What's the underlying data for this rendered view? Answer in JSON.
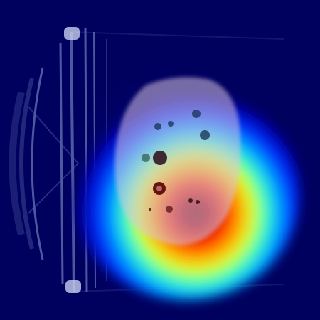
{
  "image": {
    "kind": "ct-slice-with-attention-heatmap",
    "colormap": "jet",
    "background_color": "#00005f",
    "heat_peak_color": "#7a0000",
    "tissue_tint": "#c9b3c9"
  }
}
